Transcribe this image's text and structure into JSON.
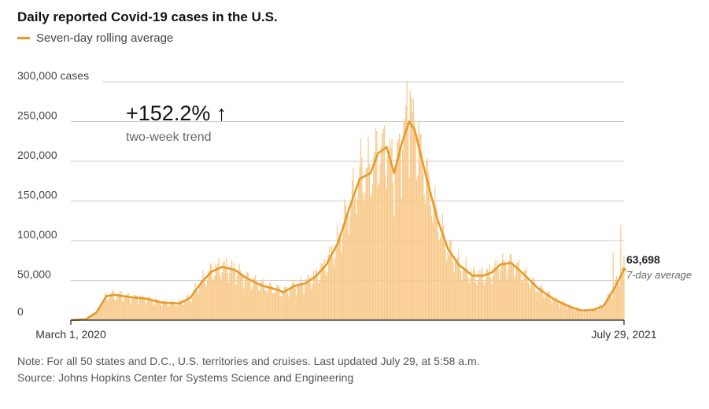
{
  "header": {
    "title": "Daily reported Covid-19 cases in the U.S.",
    "legend_label": "Seven-day rolling average"
  },
  "callout": {
    "trend_value": "+152.2%",
    "trend_arrow": "↑",
    "trend_label": "two-week trend",
    "last_value": "63,698",
    "last_label": "7-day average"
  },
  "notes": {
    "note": "Note: For all 50 states and D.C., U.S. territories and cruises. Last updated July 29, at 5:58 a.m.",
    "source": "Source: Johns Hopkins Center for Systems Science and Engineering"
  },
  "colors": {
    "bars": "#f8c98a",
    "line": "#e69b2a",
    "grid": "#cccccc",
    "axis": "#222222"
  },
  "chart_data": {
    "type": "area",
    "title": "Daily reported Covid-19 cases in the U.S.",
    "ylabel": "cases",
    "ylim": [
      0,
      300000
    ],
    "yticks": [
      {
        "value": 0,
        "label": "0"
      },
      {
        "value": 50000,
        "label": "50,000"
      },
      {
        "value": 100000,
        "label": "100,000"
      },
      {
        "value": 150000,
        "label": "150,000"
      },
      {
        "value": 200000,
        "label": "200,000"
      },
      {
        "value": 250000,
        "label": "250,000"
      },
      {
        "value": 300000,
        "label": "300,000 cases"
      }
    ],
    "x_start_label": "March 1, 2020",
    "x_end_label": "July 29, 2021",
    "grid": true,
    "legend": "top-left",
    "series": [
      {
        "name": "Seven-day rolling average",
        "points": [
          [
            "2020-03-01",
            0
          ],
          [
            "2020-03-15",
            1000
          ],
          [
            "2020-03-25",
            10000
          ],
          [
            "2020-04-03",
            30000
          ],
          [
            "2020-04-10",
            32000
          ],
          [
            "2020-04-25",
            29000
          ],
          [
            "2020-05-10",
            27000
          ],
          [
            "2020-05-25",
            22000
          ],
          [
            "2020-06-10",
            21000
          ],
          [
            "2020-06-20",
            28000
          ],
          [
            "2020-07-01",
            48000
          ],
          [
            "2020-07-10",
            61000
          ],
          [
            "2020-07-20",
            67000
          ],
          [
            "2020-08-01",
            63000
          ],
          [
            "2020-08-10",
            54000
          ],
          [
            "2020-08-25",
            44000
          ],
          [
            "2020-09-10",
            38000
          ],
          [
            "2020-09-15",
            35000
          ],
          [
            "2020-09-25",
            43000
          ],
          [
            "2020-10-05",
            46000
          ],
          [
            "2020-10-15",
            55000
          ],
          [
            "2020-10-25",
            70000
          ],
          [
            "2020-11-05",
            98000
          ],
          [
            "2020-11-15",
            140000
          ],
          [
            "2020-11-25",
            178000
          ],
          [
            "2020-12-05",
            185000
          ],
          [
            "2020-12-12",
            210000
          ],
          [
            "2020-12-20",
            218000
          ],
          [
            "2020-12-27",
            185000
          ],
          [
            "2021-01-03",
            222000
          ],
          [
            "2021-01-10",
            250000
          ],
          [
            "2021-01-15",
            240000
          ],
          [
            "2021-01-25",
            185000
          ],
          [
            "2021-02-05",
            128000
          ],
          [
            "2021-02-15",
            90000
          ],
          [
            "2021-02-25",
            70000
          ],
          [
            "2021-03-10",
            56000
          ],
          [
            "2021-03-20",
            56000
          ],
          [
            "2021-03-28",
            60000
          ],
          [
            "2021-04-05",
            70000
          ],
          [
            "2021-04-15",
            72000
          ],
          [
            "2021-04-25",
            60000
          ],
          [
            "2021-05-10",
            40000
          ],
          [
            "2021-05-25",
            26000
          ],
          [
            "2021-06-10",
            16000
          ],
          [
            "2021-06-20",
            12000
          ],
          [
            "2021-07-01",
            13000
          ],
          [
            "2021-07-10",
            18000
          ],
          [
            "2021-07-20",
            40000
          ],
          [
            "2021-07-29",
            63698
          ]
        ]
      }
    ],
    "daily_spikes": [
      [
        "2021-01-08",
        300000
      ],
      [
        "2021-01-11",
        290000
      ],
      [
        "2020-12-18",
        245000
      ],
      [
        "2020-11-27",
        205000
      ],
      [
        "2021-07-26",
        120000
      ],
      [
        "2021-07-19",
        85000
      ]
    ]
  }
}
